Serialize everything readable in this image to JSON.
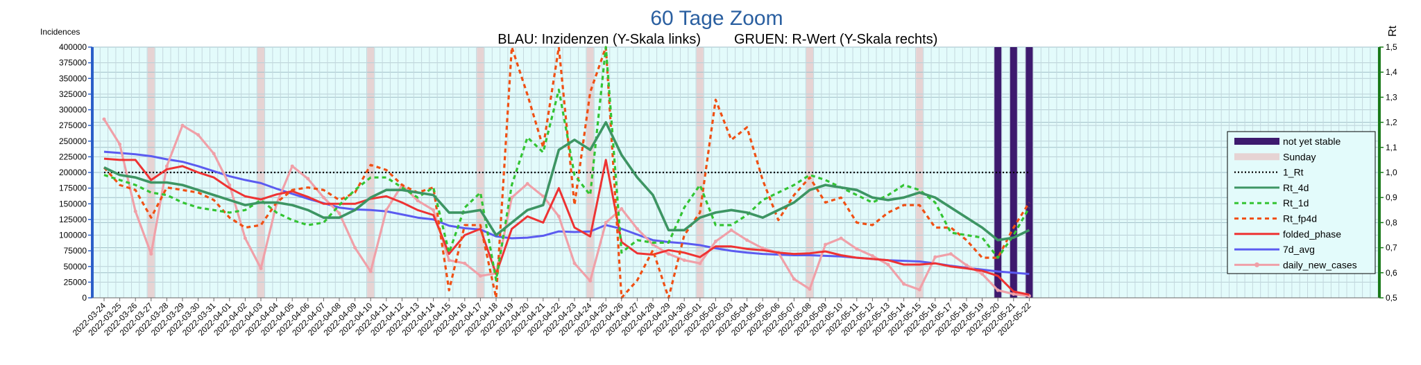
{
  "chart_data": {
    "type": "line",
    "title": "60 Tage Zoom",
    "subtitle_left": "BLAU: Inzidenzen (Y-Skala links)",
    "subtitle_right": "GRUEN: R-Wert (Y-Skala rechts)",
    "ylabel_left": "Incidences",
    "ylabel_right": "Rt",
    "ylim_left": [
      0,
      400000
    ],
    "ylim_right": [
      0.5,
      1.5
    ],
    "yticks_left": [
      "0",
      "25000",
      "50000",
      "75000",
      "100000",
      "125000",
      "150000",
      "175000",
      "200000",
      "225000",
      "250000",
      "275000",
      "300000",
      "325000",
      "350000",
      "375000",
      "400000"
    ],
    "yticks_right": [
      "0,5",
      "0,6",
      "0,7",
      "0,8",
      "0,9",
      "1,0",
      "1,1",
      "1,2",
      "1,3",
      "1,4",
      "1,5"
    ],
    "grid": true,
    "legend_position": "right",
    "dates": [
      "2022-03-24",
      "2022-03-25",
      "2022-03-26",
      "2022-03-27",
      "2022-03-28",
      "2022-03-29",
      "2022-03-30",
      "2022-03-31",
      "2022-04-01",
      "2022-04-02",
      "2022-04-03",
      "2022-04-04",
      "2022-04-05",
      "2022-04-06",
      "2022-04-07",
      "2022-04-08",
      "2022-04-09",
      "2022-04-10",
      "2022-04-11",
      "2022-04-12",
      "2022-04-13",
      "2022-04-14",
      "2022-04-15",
      "2022-04-16",
      "2022-04-17",
      "2022-04-18",
      "2022-04-19",
      "2022-04-20",
      "2022-04-21",
      "2022-04-22",
      "2022-04-23",
      "2022-04-24",
      "2022-04-25",
      "2022-04-26",
      "2022-04-27",
      "2022-04-28",
      "2022-04-29",
      "2022-04-30",
      "2022-05-01",
      "2022-05-02",
      "2022-05-03",
      "2022-05-04",
      "2022-05-05",
      "2022-05-06",
      "2022-05-07",
      "2022-05-08",
      "2022-05-09",
      "2022-05-10",
      "2022-05-11",
      "2022-05-12",
      "2022-05-13",
      "2022-05-14",
      "2022-05-15",
      "2022-05-16",
      "2022-05-17",
      "2022-05-18",
      "2022-05-19",
      "2022-05-20",
      "2022-05-21",
      "2022-05-22"
    ],
    "sundays": [
      "2022-03-27",
      "2022-04-03",
      "2022-04-10",
      "2022-04-17",
      "2022-04-24",
      "2022-05-01",
      "2022-05-08",
      "2022-05-15",
      "2022-05-22"
    ],
    "not_yet_stable": [
      "2022-05-20",
      "2022-05-21",
      "2022-05-22"
    ],
    "series": [
      {
        "name": "not yet stable",
        "axis": "left",
        "style": "bar",
        "color": "#3d1a6e"
      },
      {
        "name": "Sunday",
        "axis": "left",
        "style": "band",
        "color": "#e6d3d3"
      },
      {
        "name": "1_Rt",
        "axis": "right",
        "style": "dotted",
        "color": "#000000",
        "values": [
          1,
          1,
          1,
          1,
          1,
          1,
          1,
          1,
          1,
          1,
          1,
          1,
          1,
          1,
          1,
          1,
          1,
          1,
          1,
          1,
          1,
          1,
          1,
          1,
          1,
          1,
          1,
          1,
          1,
          1,
          1,
          1,
          1,
          1,
          1,
          1,
          1,
          1,
          1,
          1,
          1,
          1,
          1,
          1,
          1,
          1,
          1,
          1,
          1,
          1,
          1,
          1,
          1,
          1,
          1,
          1,
          1,
          1,
          1,
          1
        ]
      },
      {
        "name": "Rt_4d",
        "axis": "right",
        "style": "solid",
        "color": "#3d9563",
        "values": [
          1.02,
          0.99,
          0.98,
          0.96,
          0.96,
          0.95,
          0.93,
          0.91,
          0.89,
          0.87,
          0.88,
          0.88,
          0.87,
          0.85,
          0.82,
          0.82,
          0.85,
          0.9,
          0.93,
          0.93,
          0.92,
          0.91,
          0.84,
          0.84,
          0.85,
          0.75,
          0.8,
          0.85,
          0.87,
          1.09,
          1.13,
          1.09,
          1.2,
          1.07,
          0.98,
          0.91,
          0.77,
          0.77,
          0.82,
          0.84,
          0.85,
          0.84,
          0.82,
          0.85,
          0.88,
          0.93,
          0.95,
          0.94,
          0.93,
          0.9,
          0.89,
          0.9,
          0.92,
          0.9,
          0.86,
          0.82,
          0.78,
          0.73,
          0.74,
          0.77
        ]
      },
      {
        "name": "Rt_1d",
        "axis": "right",
        "style": "dashed",
        "color": "#33c433",
        "values": [
          0.99,
          0.97,
          0.95,
          0.92,
          0.91,
          0.88,
          0.86,
          0.85,
          0.84,
          0.85,
          0.89,
          0.84,
          0.81,
          0.79,
          0.8,
          0.87,
          0.93,
          0.98,
          0.98,
          0.94,
          0.9,
          0.94,
          0.68,
          0.86,
          0.92,
          0.57,
          0.95,
          1.14,
          1.08,
          1.33,
          0.99,
          0.91,
          1.5,
          0.68,
          0.73,
          0.72,
          0.72,
          0.86,
          0.95,
          0.79,
          0.79,
          0.83,
          0.89,
          0.92,
          0.95,
          0.99,
          0.97,
          0.94,
          0.91,
          0.88,
          0.91,
          0.95,
          0.93,
          0.88,
          0.76,
          0.75,
          0.74,
          0.66,
          0.75,
          0.86
        ]
      },
      {
        "name": "Rt_fp4d",
        "axis": "right",
        "style": "dashed",
        "color": "#f05014",
        "values": [
          1.02,
          0.95,
          0.93,
          0.82,
          0.94,
          0.93,
          0.92,
          0.89,
          0.82,
          0.78,
          0.79,
          0.88,
          0.93,
          0.94,
          0.93,
          0.89,
          0.92,
          1.03,
          1.01,
          0.95,
          0.92,
          0.94,
          0.53,
          0.79,
          0.79,
          0.44,
          1.55,
          1.31,
          1.1,
          1.62,
          0.87,
          1.32,
          1.51,
          0.49,
          0.57,
          0.69,
          0.49,
          0.75,
          0.84,
          1.29,
          1.13,
          1.18,
          0.97,
          0.81,
          0.91,
          0.98,
          0.88,
          0.9,
          0.8,
          0.79,
          0.84,
          0.87,
          0.87,
          0.78,
          0.78,
          0.73,
          0.66,
          0.66,
          0.78,
          0.88
        ]
      },
      {
        "name": "folded_phase",
        "axis": "left",
        "style": "solid",
        "color": "#ee3333",
        "values": [
          222000,
          220000,
          220000,
          188000,
          205000,
          210000,
          200000,
          192000,
          175000,
          162000,
          157000,
          165000,
          170000,
          161000,
          150000,
          150000,
          150000,
          158000,
          162000,
          152000,
          140000,
          132000,
          70000,
          100000,
          110000,
          38000,
          110000,
          130000,
          120000,
          175000,
          112000,
          98000,
          220000,
          89000,
          71000,
          69000,
          76000,
          72000,
          65000,
          82000,
          82000,
          78000,
          76000,
          72000,
          70000,
          71000,
          74000,
          68000,
          64000,
          62000,
          60000,
          53000,
          53000,
          55000,
          50000,
          47000,
          43000,
          35000,
          10000,
          5000
        ]
      },
      {
        "name": "7d_avg",
        "axis": "left",
        "style": "solid",
        "color": "#5b5bf0",
        "values": [
          233000,
          231000,
          229000,
          226000,
          221000,
          217000,
          210000,
          202000,
          194000,
          188000,
          183000,
          174000,
          166000,
          158000,
          151000,
          144000,
          141000,
          140000,
          138000,
          133000,
          128000,
          125000,
          115000,
          111000,
          109000,
          98000,
          95000,
          96000,
          99000,
          106000,
          105000,
          106000,
          116000,
          110000,
          101000,
          92000,
          89000,
          87000,
          84000,
          79000,
          75000,
          72000,
          70000,
          69000,
          68000,
          68000,
          67000,
          66000,
          64000,
          62000,
          60000,
          59000,
          58000,
          55000,
          51000,
          48000,
          45000,
          42000,
          40000,
          38000
        ]
      },
      {
        "name": "daily_new_cases",
        "axis": "left",
        "style": "marker-line",
        "color": "#f0a0a8",
        "values": [
          285000,
          245000,
          138000,
          70000,
          210000,
          275000,
          260000,
          230000,
          180000,
          95000,
          47000,
          150000,
          210000,
          190000,
          160000,
          135000,
          80000,
          42000,
          140000,
          180000,
          155000,
          140000,
          60000,
          55000,
          35000,
          39000,
          160000,
          182000,
          162000,
          130000,
          55000,
          27000,
          120000,
          142000,
          110000,
          85000,
          70000,
          60000,
          55000,
          90000,
          108000,
          92000,
          79000,
          72000,
          30000,
          14000,
          85000,
          95000,
          78000,
          67000,
          53000,
          22000,
          13000,
          65000,
          70000,
          52000,
          38000,
          12000,
          6000,
          3000
        ]
      }
    ]
  }
}
